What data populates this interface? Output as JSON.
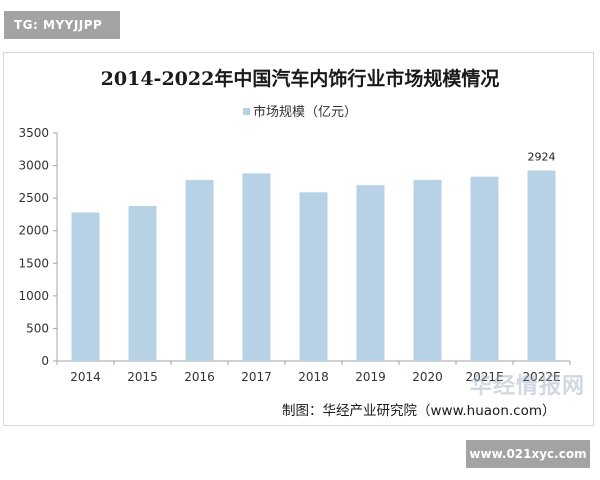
{
  "tag": "TG: MYYJJPP",
  "footer_url": "www.021xyc.com",
  "watermark": "华经情报网",
  "source": "制图：华经产业研究院（www.huaon.com）",
  "colors": {
    "bar": "#b7d2e4",
    "axis": "#a6a6a6"
  },
  "chart_data": {
    "type": "bar",
    "title": "2014-2022年中国汽车内饰行业市场规模情况",
    "legend_position": "top",
    "grid": false,
    "categories": [
      "2014",
      "2015",
      "2016",
      "2017",
      "2018",
      "2019",
      "2020",
      "2021E",
      "2022E"
    ],
    "series": [
      {
        "name": "市场规模（亿元）",
        "values": [
          2280,
          2380,
          2780,
          2880,
          2590,
          2700,
          2780,
          2830,
          2924
        ]
      }
    ],
    "data_labels": [
      null,
      null,
      null,
      null,
      null,
      null,
      null,
      null,
      "2924"
    ],
    "yticks": [
      "0",
      "500",
      "1000",
      "1500",
      "2000",
      "2500",
      "3000",
      "3500"
    ],
    "ylim": [
      0,
      3500
    ]
  }
}
